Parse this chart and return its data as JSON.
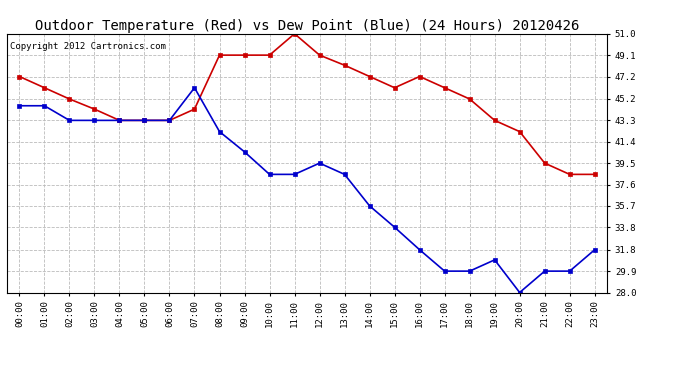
{
  "title": "Outdoor Temperature (Red) vs Dew Point (Blue) (24 Hours) 20120426",
  "copyright_text": "Copyright 2012 Cartronics.com",
  "hours": [
    "00:00",
    "01:00",
    "02:00",
    "03:00",
    "04:00",
    "05:00",
    "06:00",
    "07:00",
    "08:00",
    "09:00",
    "10:00",
    "11:00",
    "12:00",
    "13:00",
    "14:00",
    "15:00",
    "16:00",
    "17:00",
    "18:00",
    "19:00",
    "20:00",
    "21:00",
    "22:00",
    "23:00"
  ],
  "temp_red": [
    47.2,
    46.2,
    45.2,
    44.3,
    43.3,
    43.3,
    43.3,
    44.3,
    49.1,
    49.1,
    49.1,
    51.0,
    49.1,
    48.2,
    47.2,
    46.2,
    47.2,
    46.2,
    45.2,
    43.3,
    42.3,
    39.5,
    38.5,
    38.5
  ],
  "dew_blue": [
    44.6,
    44.6,
    43.3,
    43.3,
    43.3,
    43.3,
    43.3,
    46.2,
    42.3,
    40.5,
    38.5,
    38.5,
    39.5,
    38.5,
    35.7,
    33.8,
    31.8,
    29.9,
    29.9,
    30.9,
    28.0,
    29.9,
    29.9,
    31.8
  ],
  "ylim_min": 28.0,
  "ylim_max": 51.0,
  "yticks": [
    28.0,
    29.9,
    31.8,
    33.8,
    35.7,
    37.6,
    39.5,
    41.4,
    43.3,
    45.2,
    47.2,
    49.1,
    51.0
  ],
  "red_color": "#cc0000",
  "blue_color": "#0000cc",
  "bg_color": "#ffffff",
  "plot_bg_color": "#ffffff",
  "grid_color": "#bbbbbb",
  "title_fontsize": 10,
  "copyright_fontsize": 6.5
}
